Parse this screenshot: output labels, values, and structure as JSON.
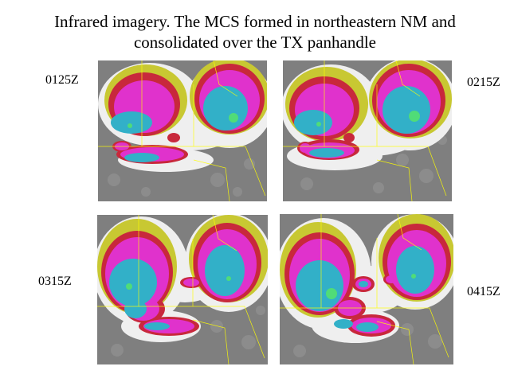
{
  "slide": {
    "title_line1": "Infrared imagery.  The MCS formed in northeastern NM and",
    "title_line2": "consolidated over the TX panhandle"
  },
  "panels": [
    {
      "time": "0125Z"
    },
    {
      "time": "0215Z"
    },
    {
      "time": "0315Z"
    },
    {
      "time": "0415Z"
    }
  ],
  "colors": {
    "background_gray": "#808080",
    "cirrus_white": "#f2f2f2",
    "cold_yellow": "#c8c832",
    "cold_red": "#c81e32",
    "very_cold_magenta": "#e632d2",
    "coldest_cyan": "#32b4c8",
    "overshoot_green": "#50dc78",
    "borders": "#ffff00"
  }
}
